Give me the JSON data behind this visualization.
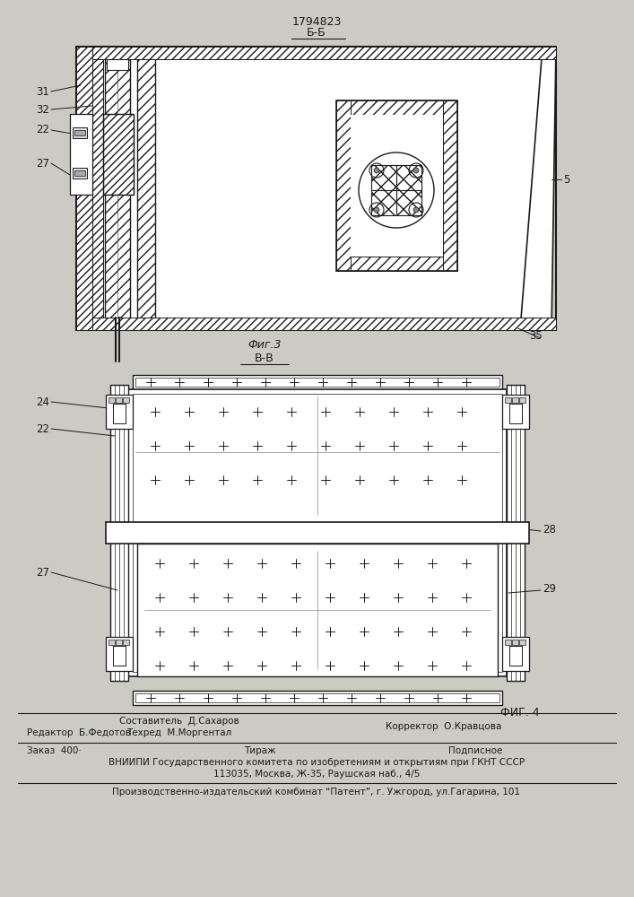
{
  "patent_number": "1794823",
  "section_bb": "Б-Б",
  "section_vv": "В-В",
  "fig3_label": "Фиг.3",
  "fig4_label": "ФИГ. 4",
  "bg_color": "#cbcbc3",
  "line_color": "#1a1a1a",
  "footer_editor": "Редактор  Б.Федотов",
  "footer_composer": "Составитель  Д.Сахаров",
  "footer_techred": "Техред  М.Моргентал",
  "footer_corrector": "Корректор  О.Кравцова",
  "footer_order": "Заказ  400·",
  "footer_tirazh": "Тираж",
  "footer_podp": "Подписное",
  "footer_vniip": "ВНИИПИ Государственного комитета по изобретениям и открытиям при ГКНТ СССР",
  "footer_addr": "113035, Москва, Ж-35, Раушская наб., 4/5",
  "footer_patent": "Производственно-издательский комбинат “Патент”, г. Ужгород, ул.Гагарина, 101"
}
